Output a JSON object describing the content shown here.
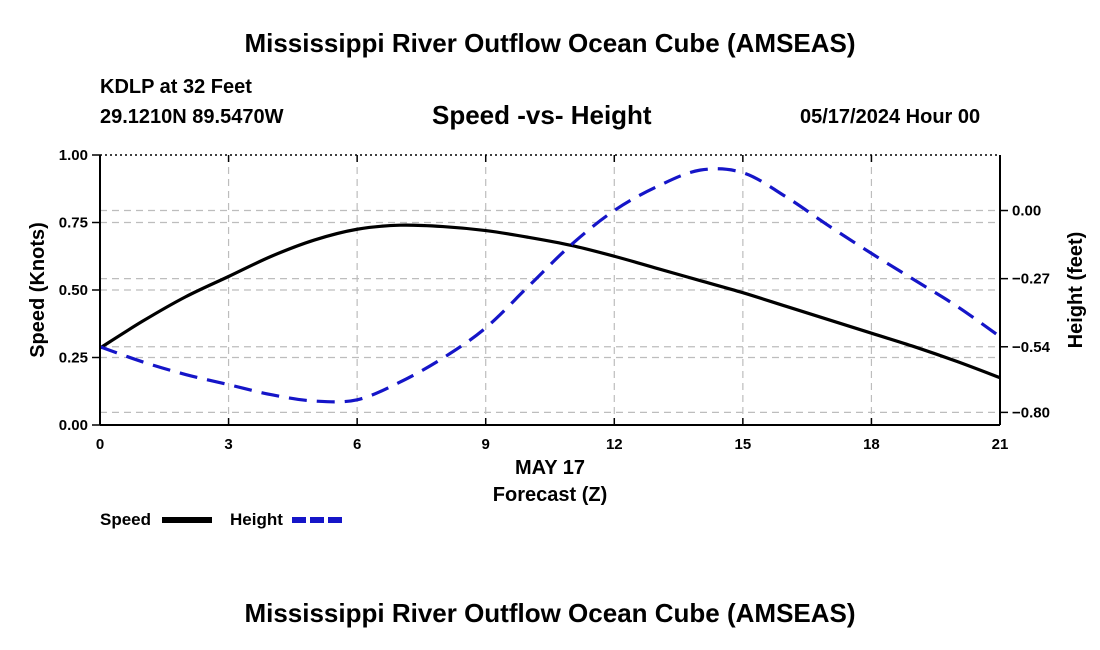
{
  "header": {
    "title": "Mississippi River Outflow Ocean Cube (AMSEAS)",
    "station": "KDLP at 32 Feet",
    "coords": "29.1210N  89.5470W",
    "subtitle": "Speed -vs- Height",
    "datetime": "05/17/2024 Hour 00"
  },
  "footer": {
    "title": "Mississippi River Outflow Ocean Cube (AMSEAS)"
  },
  "chart_data": {
    "type": "line",
    "title": "Speed -vs- Height",
    "xlabel": "Forecast (Z)",
    "xsublabel": "MAY 17",
    "ylabel": "Speed (Knots)",
    "y2label": "Height (feet)",
    "xlim": [
      0,
      21
    ],
    "ylim": [
      0,
      1
    ],
    "y2lim": [
      -0.85,
      0.22
    ],
    "x_ticks": [
      0,
      3,
      6,
      9,
      12,
      15,
      18,
      21
    ],
    "x_tick_labels": [
      "0",
      "3",
      "6",
      "9",
      "12",
      "15",
      "18",
      "21"
    ],
    "y_ticks": [
      0,
      0.25,
      0.5,
      0.75,
      1.0
    ],
    "y_tick_labels": [
      "0.00",
      "0.25",
      "0.50",
      "0.75",
      "1.00"
    ],
    "y2_ticks": [
      -0.8,
      -0.54,
      -0.27,
      0.0
    ],
    "y2_tick_labels": [
      "−0.80",
      "−0.54",
      "−0.27",
      "0.00"
    ],
    "grid": true,
    "x": [
      0,
      1,
      2,
      3,
      4,
      5,
      6,
      7,
      8,
      9,
      10,
      11,
      12,
      13,
      14,
      15,
      16,
      17,
      18,
      19,
      20,
      21
    ],
    "series": [
      {
        "name": "Speed",
        "axis": "left",
        "color": "#000000",
        "style": "solid",
        "values": [
          0.285,
          0.385,
          0.475,
          0.55,
          0.625,
          0.685,
          0.725,
          0.74,
          0.735,
          0.72,
          0.695,
          0.665,
          0.625,
          0.58,
          0.535,
          0.49,
          0.44,
          0.39,
          0.34,
          0.29,
          0.235,
          0.175
        ]
      },
      {
        "name": "Height",
        "axis": "right",
        "color": "#1515c8",
        "style": "dashed",
        "values": [
          -0.54,
          -0.6,
          -0.65,
          -0.69,
          -0.73,
          -0.755,
          -0.75,
          -0.68,
          -0.585,
          -0.465,
          -0.3,
          -0.135,
          0.0,
          0.095,
          0.16,
          0.15,
          0.055,
          -0.06,
          -0.17,
          -0.275,
          -0.38,
          -0.5
        ]
      }
    ],
    "legend": [
      {
        "label": "Speed",
        "color": "#000000",
        "style": "solid"
      },
      {
        "label": "Height",
        "color": "#1515c8",
        "style": "dashed"
      }
    ]
  }
}
